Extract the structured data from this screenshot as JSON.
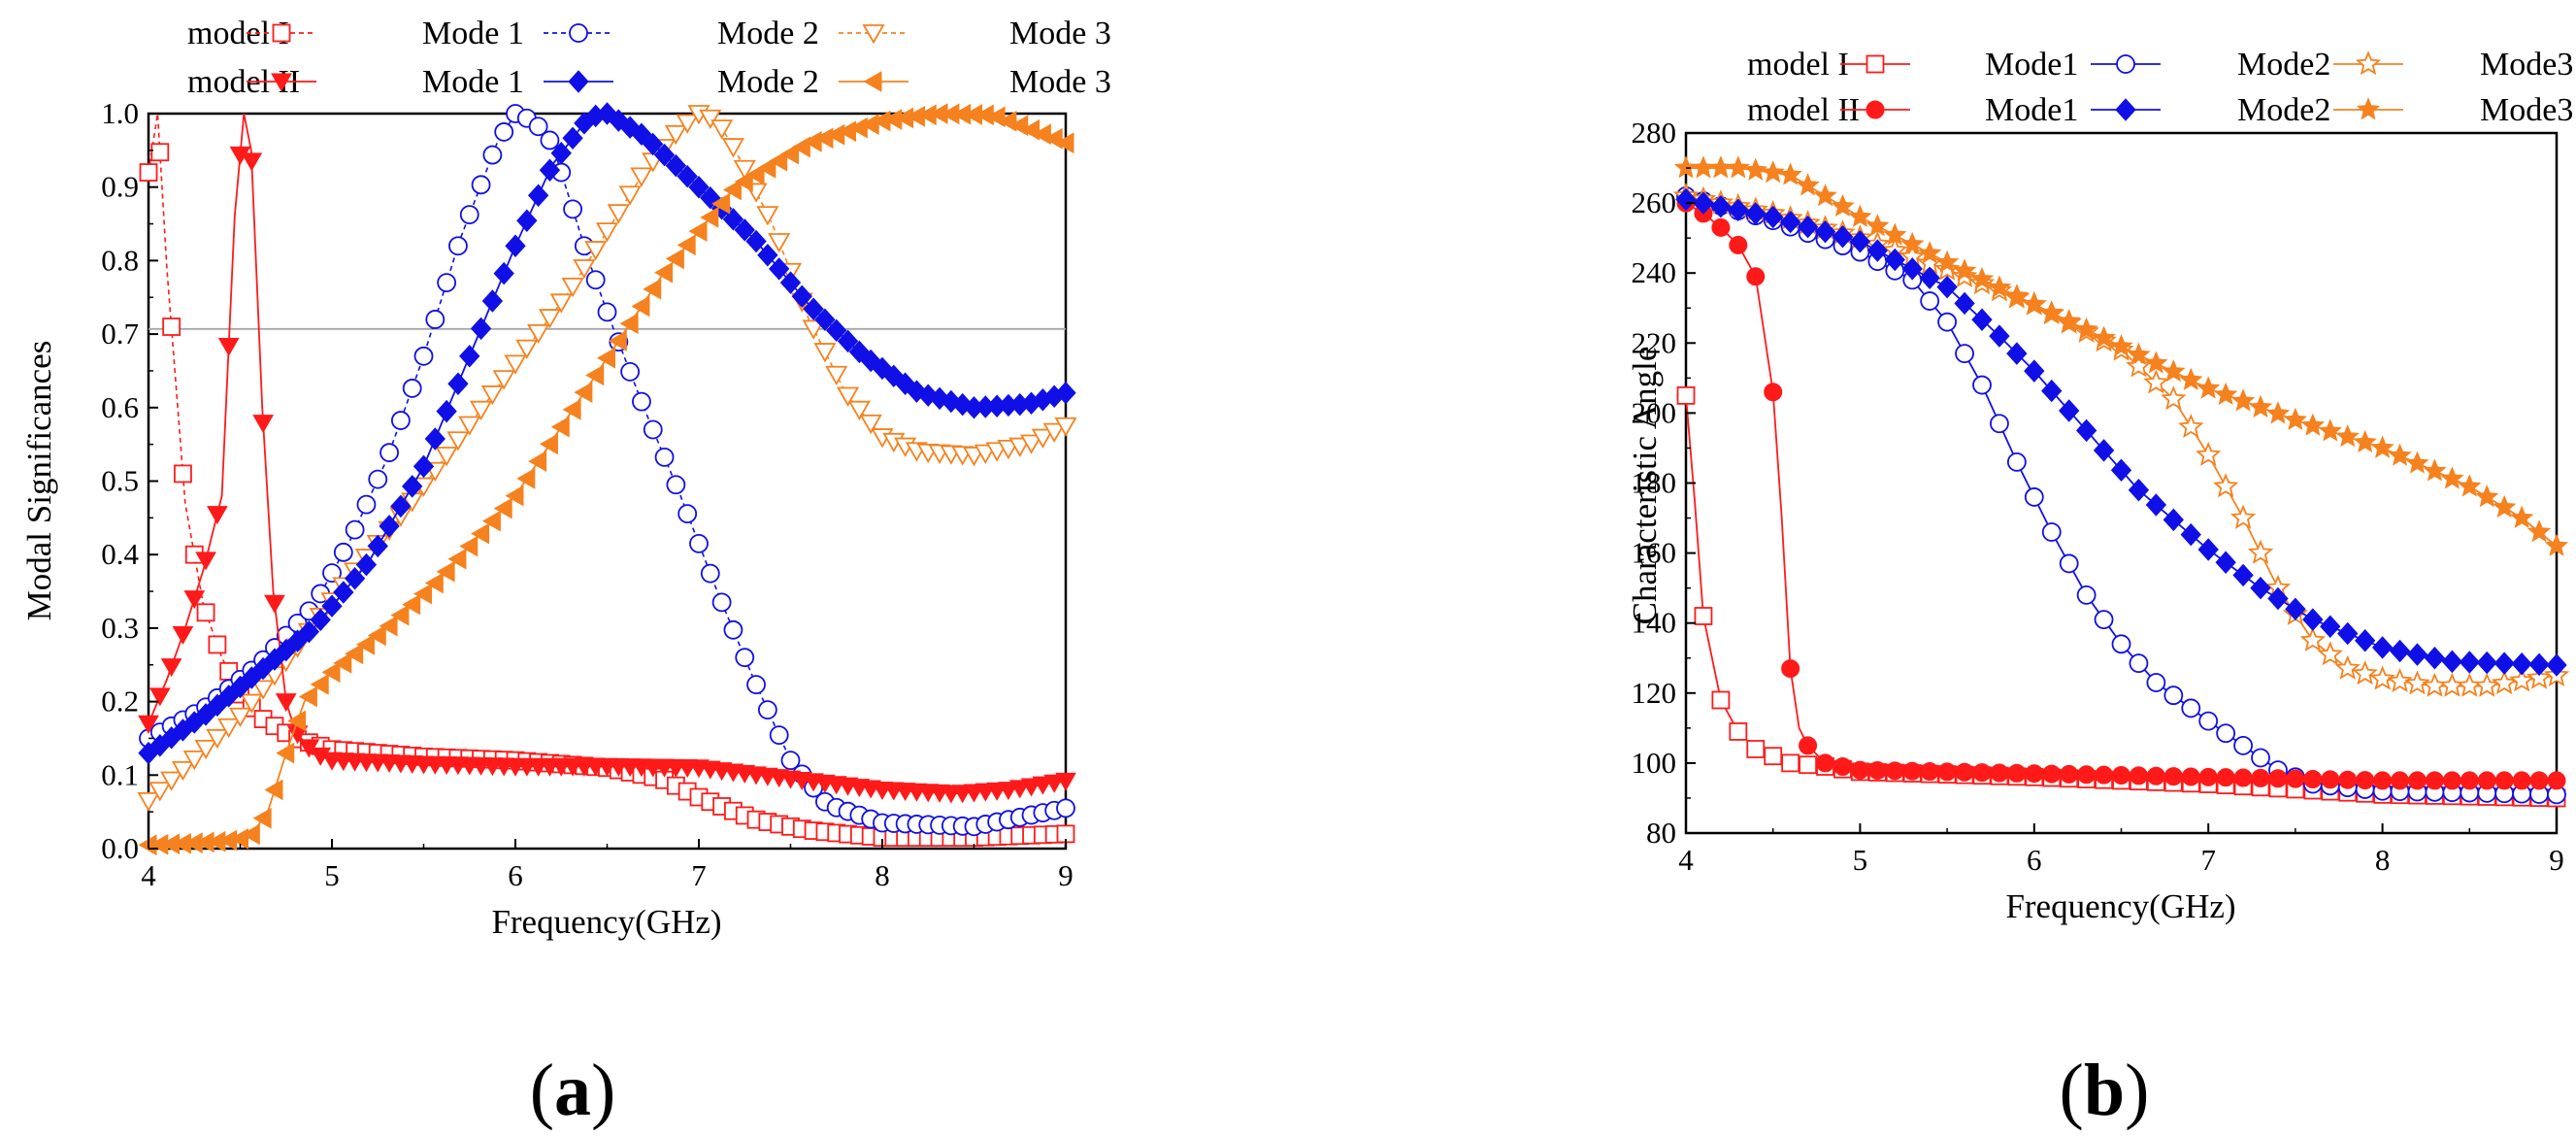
{
  "panels": [
    {
      "panel_label_open": "(",
      "panel_label_letter": "a",
      "panel_label_close": ")",
      "legend_rows": [
        {
          "group": "model I",
          "entries": [
            "Mode 1",
            "Mode 2",
            "Mode 3"
          ]
        },
        {
          "group": "model II",
          "entries": [
            "Mode 1",
            "Mode 2",
            "Mode 3"
          ]
        }
      ]
    },
    {
      "panel_label_open": "(",
      "panel_label_letter": "b",
      "panel_label_close": ")",
      "legend_rows": [
        {
          "group": "model I",
          "entries": [
            "Mode1",
            "Mode2",
            "Mode3"
          ]
        },
        {
          "group": "model II",
          "entries": [
            "Mode1",
            "Mode2",
            "Mode3"
          ]
        }
      ]
    }
  ],
  "colors": {
    "mode1": "#ff1a1a",
    "mode2": "#1010e6",
    "mode3": "#f5821f",
    "refline": "#a6a6a6"
  },
  "chart_data": [
    {
      "type": "line",
      "title": "",
      "xlabel": "Frequency(GHz)",
      "ylabel": "Modal  Significances",
      "xlim": [
        4,
        9
      ],
      "ylim": [
        0,
        1
      ],
      "xticks": [
        "4",
        "5",
        "6",
        "7",
        "8",
        "9"
      ],
      "yticks": [
        "0.0",
        "0.1",
        "0.2",
        "0.3",
        "0.4",
        "0.5",
        "0.6",
        "0.7",
        "0.8",
        "0.9",
        "1.0"
      ],
      "reference_line": 0.707,
      "grid": false,
      "legend": "top",
      "series": [
        {
          "group": "model I",
          "mode": "Mode 1",
          "style": "dashed-open-square",
          "points": [
            [
              4,
              0.92
            ],
            [
              4.05,
              1.0
            ],
            [
              4.1,
              0.79
            ],
            [
              4.2,
              0.47
            ],
            [
              4.3,
              0.33
            ],
            [
              4.4,
              0.26
            ],
            [
              4.5,
              0.21
            ],
            [
              4.6,
              0.18
            ],
            [
              4.7,
              0.165
            ],
            [
              4.8,
              0.15
            ],
            [
              5.0,
              0.135
            ],
            [
              5.5,
              0.125
            ],
            [
              6.0,
              0.12
            ],
            [
              6.5,
              0.11
            ],
            [
              6.8,
              0.095
            ],
            [
              7.0,
              0.07
            ],
            [
              7.3,
              0.04
            ],
            [
              7.6,
              0.025
            ],
            [
              8.0,
              0.015
            ],
            [
              8.5,
              0.015
            ],
            [
              9.0,
              0.02
            ]
          ]
        },
        {
          "group": "model I",
          "mode": "Mode 2",
          "style": "dashed-open-circle",
          "points": [
            [
              4,
              0.15
            ],
            [
              4.3,
              0.19
            ],
            [
              4.6,
              0.25
            ],
            [
              4.9,
              0.33
            ],
            [
              5.1,
              0.42
            ],
            [
              5.3,
              0.53
            ],
            [
              5.5,
              0.67
            ],
            [
              5.7,
              0.83
            ],
            [
              5.9,
              0.96
            ],
            [
              6.0,
              1.0
            ],
            [
              6.1,
              0.99
            ],
            [
              6.2,
              0.96
            ],
            [
              6.3,
              0.88
            ],
            [
              6.4,
              0.8
            ],
            [
              6.5,
              0.73
            ],
            [
              6.7,
              0.6
            ],
            [
              6.9,
              0.48
            ],
            [
              7.1,
              0.35
            ],
            [
              7.3,
              0.23
            ],
            [
              7.5,
              0.12
            ],
            [
              7.7,
              0.06
            ],
            [
              8.0,
              0.035
            ],
            [
              8.5,
              0.03
            ],
            [
              9.0,
              0.055
            ]
          ]
        },
        {
          "group": "model I",
          "mode": "Mode 3",
          "style": "dashed-open-triangle-down",
          "points": [
            [
              4,
              0.065
            ],
            [
              4.2,
              0.11
            ],
            [
              4.5,
              0.18
            ],
            [
              4.8,
              0.27
            ],
            [
              5.1,
              0.37
            ],
            [
              5.4,
              0.46
            ],
            [
              5.7,
              0.56
            ],
            [
              6.0,
              0.66
            ],
            [
              6.3,
              0.76
            ],
            [
              6.5,
              0.84
            ],
            [
              6.7,
              0.92
            ],
            [
              6.9,
              0.98
            ],
            [
              7.0,
              1.0
            ],
            [
              7.1,
              0.99
            ],
            [
              7.2,
              0.95
            ],
            [
              7.4,
              0.85
            ],
            [
              7.6,
              0.72
            ],
            [
              7.8,
              0.62
            ],
            [
              8.0,
              0.56
            ],
            [
              8.2,
              0.54
            ],
            [
              8.5,
              0.535
            ],
            [
              8.8,
              0.55
            ],
            [
              9.0,
              0.575
            ]
          ]
        },
        {
          "group": "model II",
          "mode": "Mode 1",
          "style": "solid-filled-triangle-down",
          "points": [
            [
              4,
              0.17
            ],
            [
              4.1,
              0.23
            ],
            [
              4.2,
              0.3
            ],
            [
              4.3,
              0.38
            ],
            [
              4.4,
              0.48
            ],
            [
              4.47,
              0.86
            ],
            [
              4.52,
              1.0
            ],
            [
              4.56,
              0.95
            ],
            [
              4.62,
              0.6
            ],
            [
              4.68,
              0.35
            ],
            [
              4.75,
              0.2
            ],
            [
              4.8,
              0.16
            ],
            [
              4.9,
              0.13
            ],
            [
              5.0,
              0.12
            ],
            [
              5.5,
              0.115
            ],
            [
              6.0,
              0.112
            ],
            [
              6.5,
              0.112
            ],
            [
              7.0,
              0.11
            ],
            [
              7.5,
              0.095
            ],
            [
              8.0,
              0.08
            ],
            [
              8.4,
              0.075
            ],
            [
              8.7,
              0.08
            ],
            [
              9.0,
              0.092
            ]
          ]
        },
        {
          "group": "model II",
          "mode": "Mode 2",
          "style": "solid-filled-diamond",
          "points": [
            [
              4,
              0.13
            ],
            [
              4.3,
              0.18
            ],
            [
              4.6,
              0.24
            ],
            [
              4.9,
              0.3
            ],
            [
              5.2,
              0.39
            ],
            [
              5.5,
              0.52
            ],
            [
              5.8,
              0.7
            ],
            [
              6.0,
              0.82
            ],
            [
              6.2,
              0.93
            ],
            [
              6.4,
              0.995
            ],
            [
              6.5,
              1.0
            ],
            [
              6.7,
              0.97
            ],
            [
              7.0,
              0.9
            ],
            [
              7.3,
              0.83
            ],
            [
              7.6,
              0.74
            ],
            [
              7.9,
              0.67
            ],
            [
              8.2,
              0.62
            ],
            [
              8.5,
              0.6
            ],
            [
              8.8,
              0.605
            ],
            [
              9.0,
              0.62
            ]
          ]
        },
        {
          "group": "model II",
          "mode": "Mode 3",
          "style": "solid-filled-triangle-left",
          "points": [
            [
              4,
              0.005
            ],
            [
              4.2,
              0.007
            ],
            [
              4.4,
              0.01
            ],
            [
              4.55,
              0.015
            ],
            [
              4.65,
              0.05
            ],
            [
              4.75,
              0.13
            ],
            [
              4.85,
              0.2
            ],
            [
              5.0,
              0.24
            ],
            [
              5.3,
              0.3
            ],
            [
              5.6,
              0.37
            ],
            [
              6.0,
              0.48
            ],
            [
              6.4,
              0.63
            ],
            [
              6.8,
              0.78
            ],
            [
              7.2,
              0.9
            ],
            [
              7.6,
              0.96
            ],
            [
              8.0,
              0.99
            ],
            [
              8.3,
              1.0
            ],
            [
              8.6,
              0.998
            ],
            [
              9.0,
              0.96
            ]
          ]
        }
      ]
    },
    {
      "type": "line",
      "title": "",
      "xlabel": "Frequency(GHz)",
      "ylabel": "Characteristic Angle",
      "xlim": [
        4,
        9
      ],
      "ylim": [
        80,
        280
      ],
      "xticks": [
        "4",
        "5",
        "6",
        "7",
        "8",
        "9"
      ],
      "yticks": [
        "80",
        "100",
        "120",
        "140",
        "160",
        "180",
        "200",
        "220",
        "240",
        "260",
        "280"
      ],
      "grid": false,
      "legend": "top",
      "series": [
        {
          "group": "model I",
          "mode": "Mode1",
          "style": "solid-open-square",
          "points": [
            [
              4,
              205
            ],
            [
              4.05,
              175
            ],
            [
              4.1,
              142
            ],
            [
              4.2,
              118
            ],
            [
              4.3,
              109
            ],
            [
              4.4,
              104
            ],
            [
              4.5,
              102
            ],
            [
              4.6,
              100
            ],
            [
              4.8,
              99
            ],
            [
              5.0,
              97.5
            ],
            [
              6.0,
              96
            ],
            [
              7.0,
              94
            ],
            [
              8.0,
              91
            ],
            [
              9.0,
              90
            ]
          ]
        },
        {
          "group": "model I",
          "mode": "Mode2",
          "style": "solid-open-circle",
          "points": [
            [
              4,
              262
            ],
            [
              4.5,
              255
            ],
            [
              5.0,
              246
            ],
            [
              5.3,
              238
            ],
            [
              5.5,
              226
            ],
            [
              5.7,
              208
            ],
            [
              5.9,
              186
            ],
            [
              6.1,
              166
            ],
            [
              6.3,
              148
            ],
            [
              6.5,
              134
            ],
            [
              6.7,
              123
            ],
            [
              7.0,
              112
            ],
            [
              7.2,
              105
            ],
            [
              7.4,
              98
            ],
            [
              7.6,
              94
            ],
            [
              8.0,
              92
            ],
            [
              9.0,
              91
            ]
          ]
        },
        {
          "group": "model I",
          "mode": "Mode3",
          "style": "solid-open-star",
          "points": [
            [
              4,
              262
            ],
            [
              4.5,
              257
            ],
            [
              5.0,
              250
            ],
            [
              5.5,
              241
            ],
            [
              6.0,
              231
            ],
            [
              6.5,
              218
            ],
            [
              6.8,
              204
            ],
            [
              7.0,
              188
            ],
            [
              7.2,
              170
            ],
            [
              7.4,
              150
            ],
            [
              7.6,
              135
            ],
            [
              7.8,
              127
            ],
            [
              8.0,
              124
            ],
            [
              8.3,
              122
            ],
            [
              8.6,
              122
            ],
            [
              9.0,
              125
            ]
          ]
        },
        {
          "group": "model II",
          "mode": "Mode1",
          "style": "solid-filled-circle",
          "points": [
            [
              4,
              260
            ],
            [
              4.1,
              257
            ],
            [
              4.2,
              253
            ],
            [
              4.3,
              248
            ],
            [
              4.4,
              239
            ],
            [
              4.5,
              206
            ],
            [
              4.55,
              170
            ],
            [
              4.6,
              127
            ],
            [
              4.65,
              110
            ],
            [
              4.7,
              105
            ],
            [
              4.8,
              100
            ],
            [
              5.0,
              98
            ],
            [
              6.0,
              97
            ],
            [
              7.0,
              96
            ],
            [
              8.0,
              95
            ],
            [
              9.0,
              95
            ]
          ]
        },
        {
          "group": "model II",
          "mode": "Mode2",
          "style": "solid-filled-diamond",
          "points": [
            [
              4,
              261
            ],
            [
              4.5,
              256
            ],
            [
              5.0,
              249
            ],
            [
              5.5,
              236
            ],
            [
              5.8,
              222
            ],
            [
              6.0,
              212
            ],
            [
              6.3,
              195
            ],
            [
              6.6,
              178
            ],
            [
              7.0,
              161
            ],
            [
              7.3,
              150
            ],
            [
              7.6,
              141
            ],
            [
              8.0,
              133
            ],
            [
              8.4,
              129
            ],
            [
              9.0,
              128
            ]
          ]
        },
        {
          "group": "model II",
          "mode": "Mode3",
          "style": "solid-filled-star",
          "points": [
            [
              4,
              270
            ],
            [
              4.3,
              270
            ],
            [
              4.6,
              268
            ],
            [
              4.8,
              262
            ],
            [
              5.0,
              256
            ],
            [
              5.5,
              243
            ],
            [
              6.0,
              231
            ],
            [
              6.5,
              219
            ],
            [
              7.0,
              207
            ],
            [
              7.5,
              198
            ],
            [
              8.0,
              190
            ],
            [
              8.5,
              179
            ],
            [
              8.8,
              170
            ],
            [
              9.0,
              162
            ]
          ]
        }
      ]
    }
  ]
}
